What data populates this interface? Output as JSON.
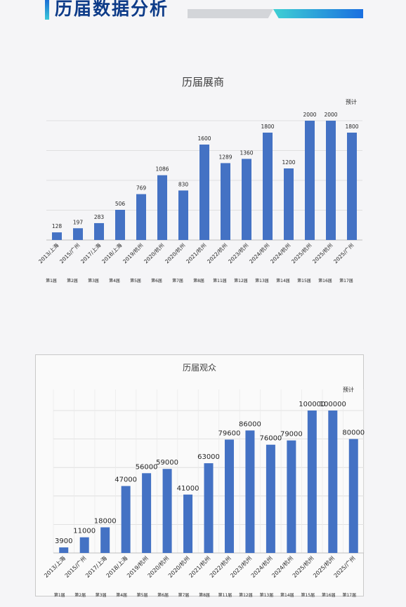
{
  "header": {
    "title": "历届数据分析"
  },
  "chart_data": [
    {
      "type": "bar",
      "title": "历届展商",
      "note": "预计",
      "categories": [
        "2013/上海",
        "2015/广州",
        "2017/上海",
        "2018/上海",
        "2019/杭州",
        "2020/杭州",
        "2020/杭州",
        "2021/杭州",
        "2022/杭州",
        "2023/杭州",
        "2024/杭州",
        "2024/杭州",
        "2025/杭州",
        "2025/杭州",
        "2025/广州"
      ],
      "sessions": [
        "第1届",
        "第2届",
        "第3届",
        "第4届",
        "第5届",
        "第6届",
        "第7届",
        "第8届",
        "第11届",
        "第12届",
        "第13届",
        "第14届",
        "第15届",
        "第16届",
        "第17届"
      ],
      "values": [
        128,
        197,
        283,
        506,
        769,
        1086,
        830,
        1600,
        1289,
        1360,
        1800,
        1200,
        2000,
        2000,
        1800
      ],
      "ylim": [
        0,
        2000
      ],
      "grid": true,
      "color": "#4472c4"
    },
    {
      "type": "bar",
      "title": "历届观众",
      "note": "预计",
      "categories": [
        "2013/上海",
        "2015/广州",
        "2017/上海",
        "2018/上海",
        "2019/杭州",
        "2020/杭州",
        "2020/杭州",
        "2021/杭州",
        "2022/杭州",
        "2023/杭州",
        "2024/杭州",
        "2024/杭州",
        "2025/杭州",
        "2025/杭州",
        "2025/广州"
      ],
      "sessions": [
        "第1届",
        "第2届",
        "第3届",
        "第4届",
        "第5届",
        "第6届",
        "第7届",
        "第8届",
        "第11届",
        "第12届",
        "第13届",
        "第14届",
        "第15届",
        "第16届",
        "第17届"
      ],
      "values": [
        3900,
        11000,
        18000,
        47000,
        56000,
        59000,
        41000,
        63000,
        79600,
        86000,
        76000,
        79000,
        100000,
        100000,
        80000
      ],
      "ylim": [
        0,
        100000
      ],
      "grid": true,
      "color": "#4472c4"
    }
  ]
}
